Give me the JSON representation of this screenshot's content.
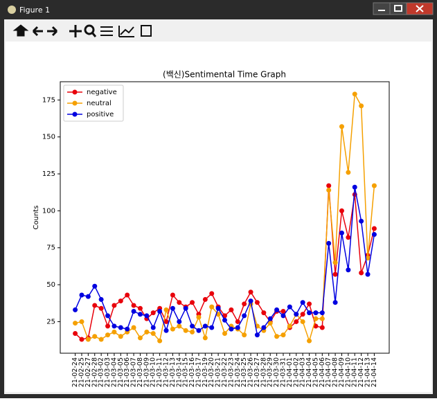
{
  "window": {
    "title": "Figure 1"
  },
  "chart_data": {
    "type": "line",
    "title": "(백신)Sentimental Time Graph",
    "ylabel": "Counts",
    "categories": [
      "21-02-24",
      "21-02-25",
      "21-02-27",
      "21-02-28",
      "21-03-02",
      "21-03-03",
      "21-03-04",
      "21-03-05",
      "21-03-06",
      "21-03-07",
      "21-03-08",
      "21-03-09",
      "21-03-10",
      "21-03-11",
      "21-03-12",
      "21-03-13",
      "21-03-14",
      "21-03-15",
      "21-03-16",
      "21-03-17",
      "21-03-19",
      "21-03-20",
      "21-03-21",
      "21-03-22",
      "21-03-23",
      "21-03-24",
      "21-03-25",
      "21-03-26",
      "21-03-27",
      "21-03-28",
      "21-03-29",
      "21-03-30",
      "21-03-31",
      "21-04-01",
      "21-04-02",
      "21-04-03",
      "21-04-04",
      "21-04-05",
      "21-04-06",
      "21-04-07",
      "21-04-08",
      "21-04-09",
      "21-04-10",
      "21-04-11",
      "21-04-12",
      "21-04-13",
      "21-04-14"
    ],
    "series": [
      {
        "name": "negative",
        "color": "#e8000b",
        "values": [
          17,
          13,
          14,
          36,
          34,
          22,
          36,
          39,
          43,
          36,
          34,
          27,
          31,
          34,
          25,
          43,
          38,
          35,
          38,
          30,
          40,
          44,
          35,
          29,
          33,
          25,
          37,
          45,
          38,
          31,
          25,
          32,
          32,
          21,
          25,
          30,
          37,
          22,
          21,
          117,
          57,
          100,
          82,
          111,
          58,
          70,
          88
        ]
      },
      {
        "name": "neutral",
        "color": "#f5a000",
        "values": [
          24,
          25,
          13,
          15,
          13,
          16,
          18,
          15,
          18,
          21,
          14,
          18,
          17,
          12,
          33,
          20,
          22,
          19,
          18,
          28,
          14,
          35,
          30,
          17,
          22,
          20,
          16,
          37,
          22,
          19,
          24,
          15,
          16,
          22,
          30,
          25,
          12,
          27,
          27,
          114,
          65,
          157,
          126,
          179,
          171,
          68,
          117
        ]
      },
      {
        "name": "positive",
        "color": "#0000e0",
        "values": [
          33,
          43,
          42,
          49,
          40,
          29,
          22,
          21,
          20,
          32,
          30,
          29,
          21,
          32,
          19,
          34,
          25,
          34,
          22,
          19,
          22,
          21,
          34,
          26,
          20,
          21,
          29,
          39,
          16,
          21,
          27,
          33,
          29,
          35,
          30,
          38,
          31,
          31,
          31,
          78,
          38,
          85,
          60,
          116,
          93,
          57,
          84
        ]
      }
    ],
    "ylim": [
      3.65,
      187.35
    ],
    "yticks": [
      25,
      50,
      75,
      100,
      125,
      150,
      175
    ],
    "legend": "upper left"
  }
}
